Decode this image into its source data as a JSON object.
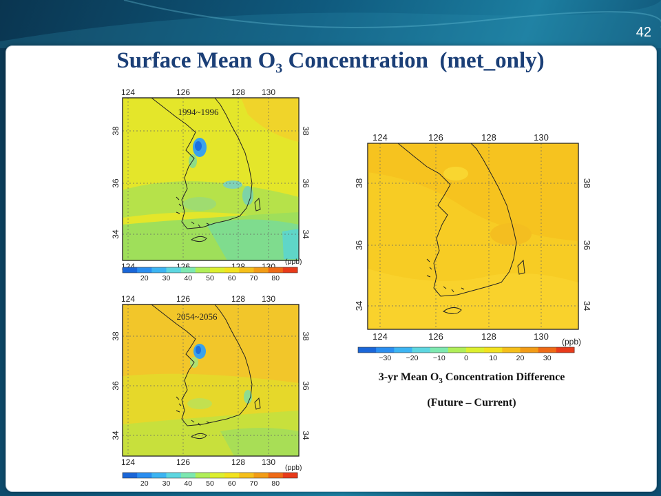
{
  "slide": {
    "number": "42",
    "title_main": "Surface Mean O",
    "title_sub": "3",
    "title_tail": " Concentration  (met_only)"
  },
  "colors": {
    "low": "#1e8fe0",
    "mid_low": "#5ad2d6",
    "mid": "#a8e04a",
    "base_yellow": "#e8e81e",
    "orange": "#f2b21a",
    "red": "#e8321e",
    "diff_fill": "#f7cc24",
    "diff_fill_2": "#f4bf22"
  },
  "maps": [
    {
      "id": "current",
      "period": "1994~1996",
      "lon_ticks": [
        "124",
        "126",
        "128",
        "130"
      ],
      "lat_ticks": [
        "34",
        "36",
        "38"
      ],
      "colorbar_unit": "(ppb)",
      "colorbar_labels": [
        "20",
        "30",
        "40",
        "50",
        "60",
        "70",
        "80"
      ],
      "colorbar_colors": [
        "#1a66d8",
        "#2a8ef0",
        "#3cb4f2",
        "#5dd6e0",
        "#7de8b0",
        "#b0ee58",
        "#dcef2e",
        "#f2e21e",
        "#f5bf1a",
        "#f29c16",
        "#ee6a16",
        "#e83a1a"
      ]
    },
    {
      "id": "future",
      "period": "2054~2056",
      "lon_ticks": [
        "124",
        "126",
        "128",
        "130"
      ],
      "lat_ticks": [
        "34",
        "36",
        "38"
      ],
      "colorbar_unit": "(ppb)",
      "colorbar_labels": [
        "20",
        "30",
        "40",
        "50",
        "60",
        "70",
        "80"
      ],
      "colorbar_colors": [
        "#1a66d8",
        "#2a8ef0",
        "#3cb4f2",
        "#5dd6e0",
        "#7de8b0",
        "#b0ee58",
        "#dcef2e",
        "#f2e21e",
        "#f5bf1a",
        "#f29c16",
        "#ee6a16",
        "#e83a1a"
      ]
    },
    {
      "id": "difference",
      "period": "",
      "lon_ticks": [
        "124",
        "126",
        "128",
        "130"
      ],
      "lat_ticks": [
        "34",
        "36",
        "38"
      ],
      "colorbar_unit": "(ppb)",
      "colorbar_labels": [
        "−30",
        "−20",
        "−10",
        "0",
        "10",
        "20",
        "30"
      ],
      "colorbar_colors": [
        "#1a66d8",
        "#2a8ef0",
        "#3cb4f2",
        "#5dd6e0",
        "#7de8b0",
        "#b0ee58",
        "#dcef2e",
        "#f2e21e",
        "#f5bf1a",
        "#f29c16",
        "#ee6a16",
        "#e83a1a"
      ]
    }
  ],
  "caption": {
    "line1_main": "3-yr Mean O",
    "line1_sub": "3",
    "line1_tail": " Concentration Difference",
    "line2": "(Future – Current)"
  }
}
